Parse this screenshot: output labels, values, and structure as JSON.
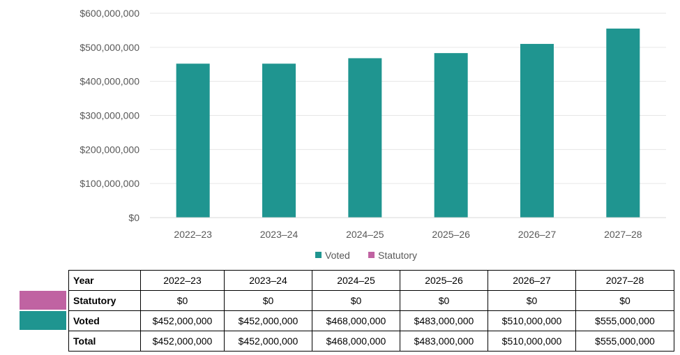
{
  "chart_data": {
    "type": "bar",
    "categories": [
      "2022–23",
      "2023–24",
      "2024–25",
      "2025–26",
      "2026–27",
      "2027–28"
    ],
    "series": [
      {
        "name": "Voted",
        "values": [
          452000000,
          452000000,
          468000000,
          483000000,
          510000000,
          555000000
        ],
        "color": "#1f9590"
      },
      {
        "name": "Statutory",
        "values": [
          0,
          0,
          0,
          0,
          0,
          0
        ],
        "color": "#c063a2"
      }
    ],
    "ylim": [
      0,
      600000000
    ],
    "y_ticks": [
      "$0",
      "$100,000,000",
      "$200,000,000",
      "$300,000,000",
      "$400,000,000",
      "$500,000,000",
      "$600,000,000"
    ],
    "y_tick_values": [
      0,
      100000000,
      200000000,
      300000000,
      400000000,
      500000000,
      600000000
    ],
    "grid": true,
    "legend_position": "bottom",
    "title": "",
    "xlabel": "",
    "ylabel": ""
  },
  "table": {
    "header_label": "Year",
    "years": [
      "2022–23",
      "2023–24",
      "2024–25",
      "2025–26",
      "2026–27",
      "2027–28"
    ],
    "rows": [
      {
        "label": "Statutory",
        "swatch_color": "#c063a2",
        "values": [
          "$0",
          "$0",
          "$0",
          "$0",
          "$0",
          "$0"
        ]
      },
      {
        "label": "Voted",
        "swatch_color": "#1f9590",
        "values": [
          "$452,000,000",
          "$452,000,000",
          "$468,000,000",
          "$483,000,000",
          "$510,000,000",
          "$555,000,000"
        ]
      },
      {
        "label": "Total",
        "swatch_color": "",
        "values": [
          "$452,000,000",
          "$452,000,000",
          "$468,000,000",
          "$483,000,000",
          "$510,000,000",
          "$555,000,000"
        ]
      }
    ]
  }
}
